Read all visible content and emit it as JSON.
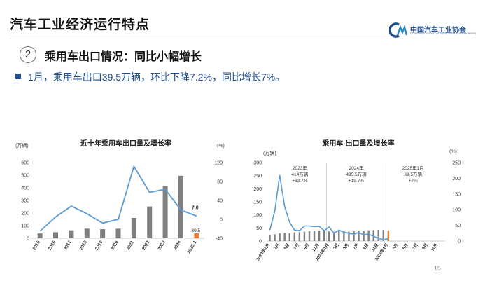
{
  "header": {
    "title": "汽车工业经济运行特点",
    "logo_name": "中国汽车工业协会",
    "logo_sub": "China Association of Automobile Manufacturers"
  },
  "section": {
    "number": "2",
    "title": "乘用车出口情况：同比小幅增长"
  },
  "bullet": {
    "text": "1月，乘用车出口39.5万辆，环比下降7.2%，同比增长7%。"
  },
  "page_number": "15",
  "colors": {
    "bar": "#7f7f7f",
    "bar_highlight": "#ed7d31",
    "line": "#5b9bd5",
    "brand": "#1f4e8c"
  },
  "chart_data": [
    {
      "type": "bar",
      "title": "近十年乘用车出口量及增长率",
      "left_unit": "(万辆)",
      "right_unit": "(%)",
      "categories": [
        "2015",
        "2016",
        "2017",
        "2018",
        "2019",
        "2020",
        "2021",
        "2022",
        "2023",
        "2024",
        "2025.1"
      ],
      "series": [
        {
          "values": [
            38,
            48,
            63,
            76,
            72,
            76,
            161,
            252,
            414,
            495.5,
            39.5
          ],
          "axis": "left"
        },
        {
          "values": [
            -25,
            5,
            28,
            12,
            -8,
            0,
            112,
            57,
            63.7,
            19.7,
            7.0
          ],
          "axis": "right"
        }
      ],
      "ylim": [
        0,
        600
      ],
      "y_ticks": [
        "0",
        "100",
        "200",
        "300",
        "400",
        "500",
        "600"
      ],
      "y2lim": [
        -40,
        120
      ],
      "y2_ticks": [
        "-40",
        "0",
        "40",
        "80",
        "120"
      ],
      "data_labels": [
        "7.0",
        "39.5"
      ]
    },
    {
      "type": "bar",
      "title": "乘用车-出口量及增长率",
      "left_unit": "(万辆)",
      "right_unit": "(%)",
      "categories": [
        "2023年1月",
        "2月",
        "3月",
        "4月",
        "5月",
        "6月",
        "7月",
        "8月",
        "9月",
        "10月",
        "11月",
        "12月",
        "2024年1月",
        "2月",
        "3月",
        "4月",
        "5月",
        "6月",
        "7月",
        "8月",
        "9月",
        "10月",
        "11月",
        "12月",
        "2025年1月",
        "2月",
        "3月",
        "4月",
        "5月",
        "6月",
        "7月",
        "8月",
        "9月",
        "10月",
        "11月",
        "12月"
      ],
      "x_tick_labels": [
        "2023年1月",
        "3月",
        "5月",
        "7月",
        "9月",
        "11月",
        "2024年1月",
        "3月",
        "5月",
        "7月",
        "9月",
        "11月",
        "2025年1月",
        "3月",
        "5月",
        "7月",
        "9月",
        "11月"
      ],
      "series": [
        {
          "values": [
            24,
            26,
            30,
            31,
            30,
            33,
            34,
            36,
            38,
            39,
            40,
            40,
            37,
            35,
            38,
            38,
            36,
            38,
            40,
            39,
            41,
            42,
            43,
            42.5,
            39.5,
            null,
            null,
            null,
            null,
            null,
            null,
            null,
            null,
            null,
            null,
            null
          ],
          "axis": "left"
        },
        {
          "values": [
            35,
            95,
            210,
            110,
            60,
            35,
            33,
            48,
            48,
            46,
            47,
            33,
            45,
            25,
            35,
            28,
            25,
            22,
            27,
            20,
            22,
            15,
            8,
            5,
            7,
            null,
            null,
            null,
            null,
            null,
            null,
            null,
            null,
            null,
            null,
            null
          ],
          "axis": "right"
        }
      ],
      "ylim": [
        0,
        300
      ],
      "y_ticks": [
        "0",
        "50",
        "100",
        "150",
        "200",
        "250",
        "300"
      ],
      "y2lim": [
        0,
        250
      ],
      "y2_ticks": [
        "0",
        "50",
        "100",
        "150",
        "200",
        "250"
      ],
      "annotations": [
        {
          "lines": [
            "2023年",
            "414万辆",
            "+63.7%"
          ]
        },
        {
          "lines": [
            "2024年",
            "495.5万辆",
            "+19.7%"
          ]
        },
        {
          "lines": [
            "2025年1月",
            "39.5万辆",
            "+7%"
          ]
        }
      ]
    }
  ]
}
